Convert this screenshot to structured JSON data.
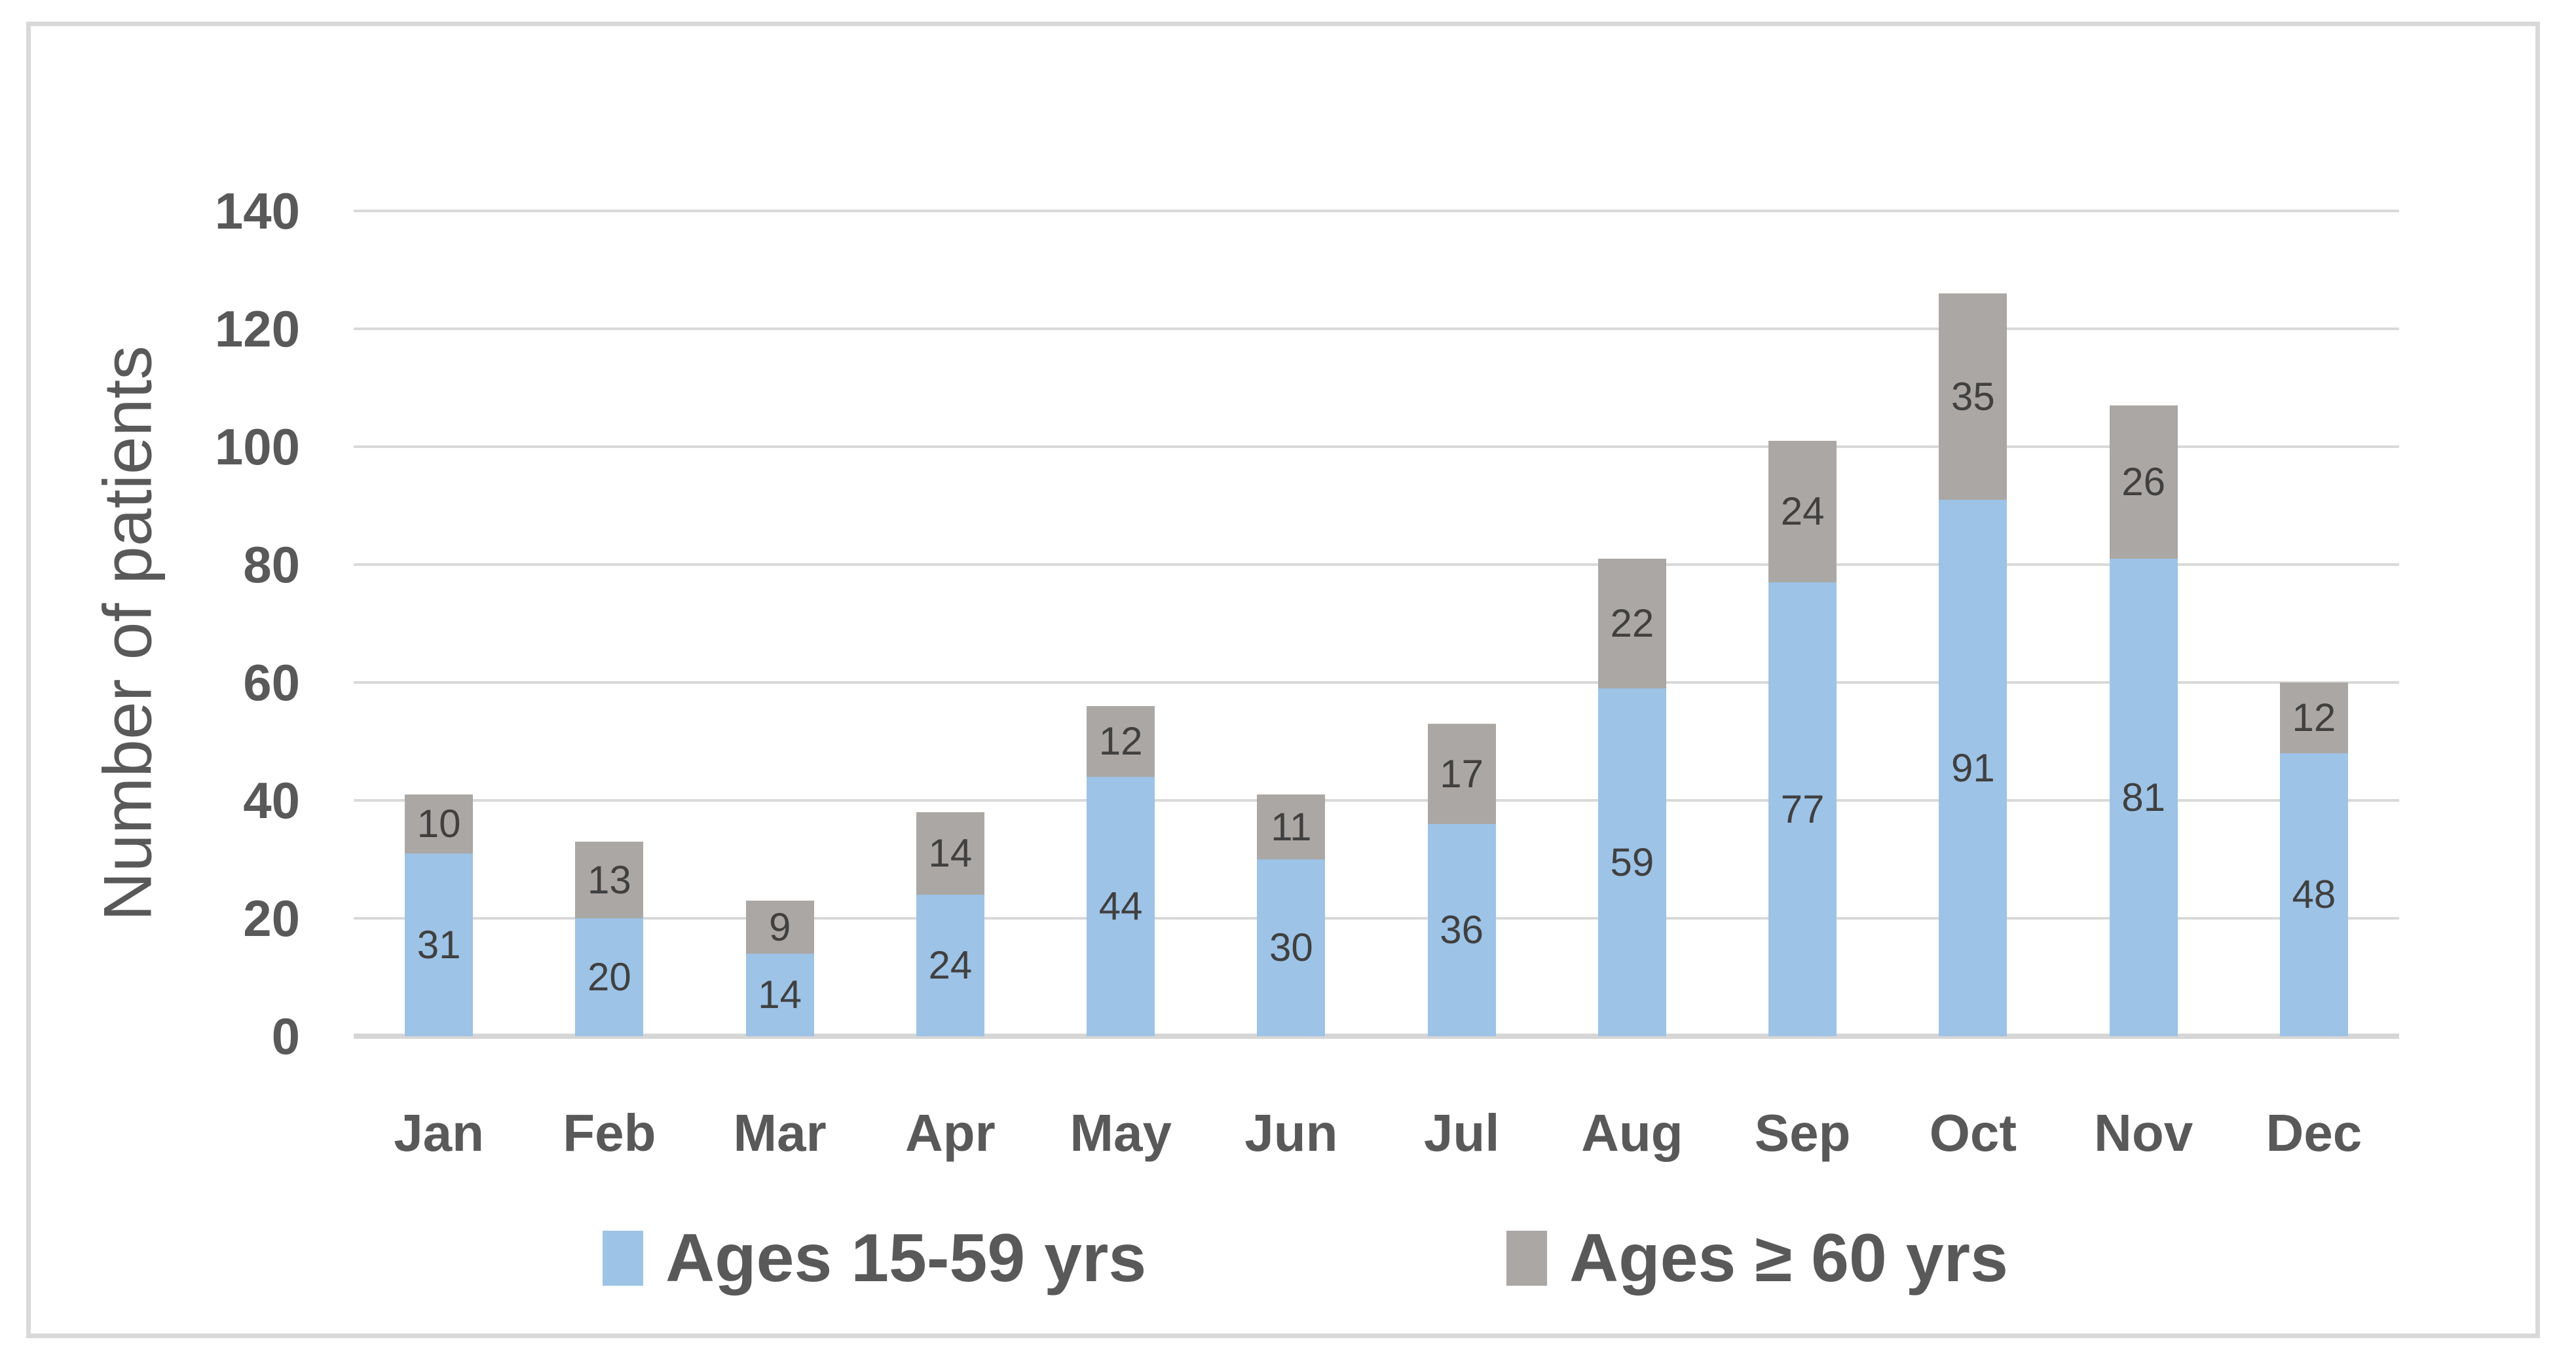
{
  "figure": {
    "background": "#FFFFFF",
    "border_color": "#D9D9D9"
  },
  "chart_data": {
    "type": "bar",
    "stacked": true,
    "title": "",
    "xlabel": "",
    "ylabel": "Number of patients",
    "ylim": [
      0,
      140
    ],
    "yticks": [
      0,
      20,
      40,
      60,
      80,
      100,
      120,
      140
    ],
    "grid": true,
    "legend_position": "bottom",
    "categories": [
      "Jan",
      "Feb",
      "Mar",
      "Apr",
      "May",
      "Jun",
      "Jul",
      "Aug",
      "Sep",
      "Oct",
      "Nov",
      "Dec"
    ],
    "series": [
      {
        "name": "Ages 15-59 yrs",
        "color": "#9DC3E6",
        "values": [
          31,
          20,
          14,
          24,
          44,
          30,
          36,
          59,
          77,
          91,
          81,
          48
        ]
      },
      {
        "name": "Ages ≥ 60 yrs",
        "color": "#ABA7A4",
        "values": [
          10,
          13,
          9,
          14,
          12,
          11,
          17,
          22,
          24,
          35,
          26,
          12
        ]
      }
    ],
    "totals": [
      41,
      33,
      23,
      38,
      56,
      41,
      53,
      81,
      101,
      126,
      107,
      60
    ],
    "data_label_color": "#404040",
    "axis_text_color": "#595959",
    "gridline_color": "#D9D9D9"
  }
}
